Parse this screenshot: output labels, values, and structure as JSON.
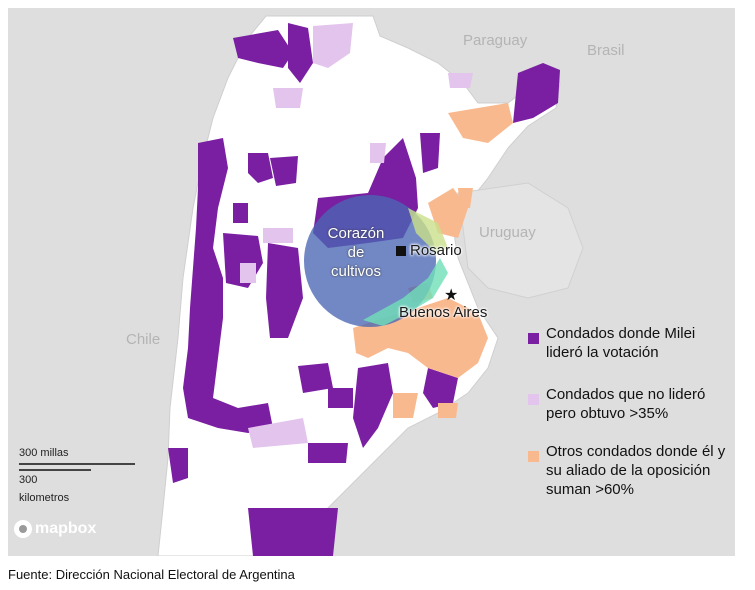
{
  "map": {
    "countries": {
      "paraguay": "Paraguay",
      "brasil": "Brasil",
      "uruguay": "Uruguay",
      "chile": "Chile"
    },
    "cities": {
      "rosario": "Rosario",
      "buenos_aires": "Buenos Aires"
    },
    "heartland_label": [
      "Corazón",
      "de",
      "cultivos"
    ],
    "colors": {
      "milei_led": "#7a1fa2",
      "over_35": "#e3c4ec",
      "over_60": "#f9b98f",
      "heartland": "#4a67b4",
      "land": "#ffffff",
      "background": "#dedede"
    }
  },
  "legend": {
    "items": [
      {
        "label": "Condados donde Milei lideró la votación",
        "color": "#7a1fa2"
      },
      {
        "label": "Condados que no lideró pero obtuvo >35%",
        "color": "#e3c4ec"
      },
      {
        "label": "Otros condados donde él y su aliado de la oposición suman >60%",
        "color": "#f9b98f"
      }
    ]
  },
  "scale": {
    "miles": "300 millas",
    "km_value": "300",
    "km_unit": "kilometros"
  },
  "attribution": {
    "logo_text": "mapbox"
  },
  "source": "Fuente: Dirección Nacional Electoral de Argentina"
}
